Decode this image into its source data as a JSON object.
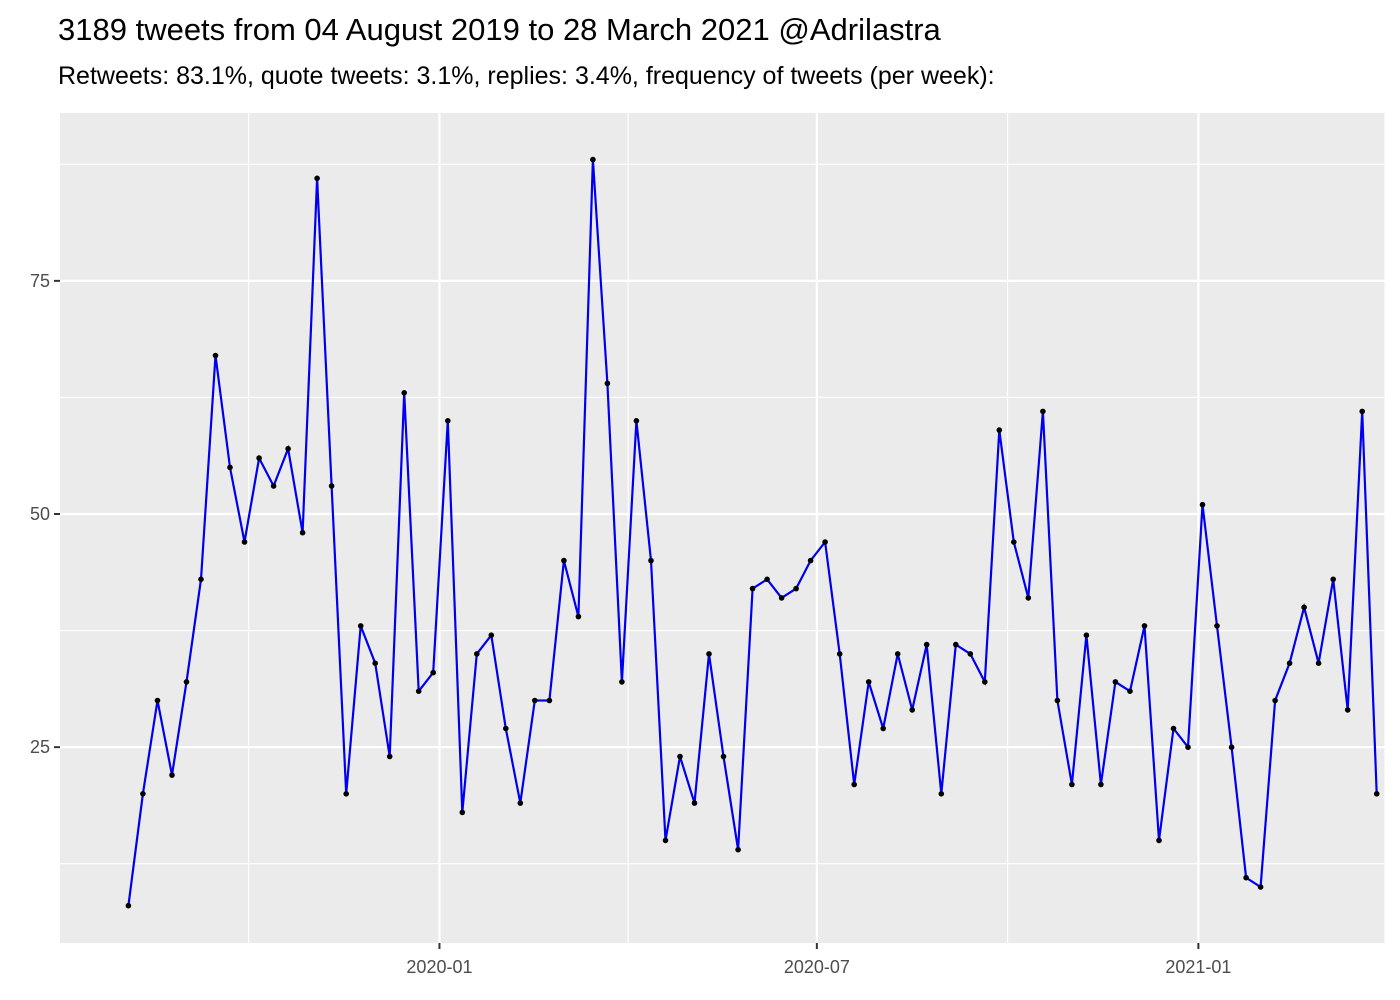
{
  "title": "3189 tweets from 04 August 2019 to 28 March 2021 @Adrilastra",
  "subtitle": "Retweets: 83.1%, quote tweets: 3.1%, replies: 3.4%, frequency of tweets (per week):",
  "chart_data": {
    "type": "line",
    "title": "3189 tweets from 04 August 2019 to 28 March 2021 @Adrilastra",
    "subtitle": "Retweets: 83.1%, quote tweets: 3.1%, replies: 3.4%, frequency of tweets (per week):",
    "xlabel": "",
    "ylabel": "",
    "x_start": "2019-08-04",
    "x_step_days": 7,
    "x_ticks": [
      {
        "date": "2020-01-01",
        "label": "2020-01"
      },
      {
        "date": "2020-07-01",
        "label": "2020-07"
      },
      {
        "date": "2021-01-01",
        "label": "2021-01"
      }
    ],
    "x_minor_ticks": [
      "2019-07-01",
      "2019-10-01",
      "2020-04-01",
      "2020-10-01",
      "2021-04-01"
    ],
    "y_ticks": [
      25,
      50,
      75
    ],
    "y_minor_ticks": [
      12.5,
      37.5,
      62.5,
      87.5
    ],
    "xlim": [
      "2019-07-02",
      "2021-04-01"
    ],
    "ylim": [
      4,
      93
    ],
    "grid": true,
    "line_color": "#0000ee",
    "point_color": "#000000",
    "panel_color": "#ebebeb",
    "grid_color": "#ffffff",
    "series": [
      {
        "values": [
          8,
          20,
          30,
          22,
          32,
          43,
          67,
          55,
          47,
          56,
          53,
          57,
          48,
          86,
          53,
          20,
          38,
          34,
          24,
          63,
          31,
          33,
          60,
          18,
          35,
          37,
          27,
          19,
          30,
          30,
          45,
          39,
          88,
          64,
          32,
          60,
          45,
          15,
          24,
          19,
          35,
          24,
          14,
          42,
          43,
          41,
          42,
          45,
          47,
          35,
          21,
          32,
          27,
          35,
          29,
          36,
          20,
          36,
          35,
          32,
          59,
          47,
          41,
          61,
          30,
          21,
          37,
          21,
          32,
          31,
          38,
          15,
          27,
          25,
          51,
          38,
          25,
          11,
          10,
          30,
          34,
          40,
          34,
          43,
          29,
          61,
          20
        ]
      }
    ]
  }
}
